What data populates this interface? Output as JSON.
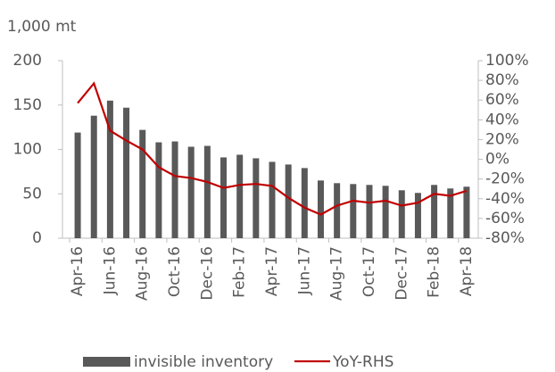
{
  "chart_data": {
    "type": "bar_line",
    "y_label": "1,000 mt",
    "categories": [
      "Apr-16",
      null,
      "Jun-16",
      null,
      "Aug-16",
      null,
      "Oct-16",
      null,
      "Dec-16",
      null,
      "Feb-17",
      null,
      "Apr-17",
      null,
      "Jun-17",
      null,
      "Aug-17",
      null,
      "Oct-17",
      null,
      "Dec-17",
      null,
      "Feb-18",
      null,
      "Apr-18"
    ],
    "series": [
      {
        "name": "invisible inventory",
        "type": "bar",
        "color": "#595959",
        "values": [
          119,
          138,
          155,
          147,
          122,
          108,
          109,
          103,
          104,
          91,
          94,
          90,
          86,
          83,
          79,
          65,
          62,
          61,
          60,
          59,
          54,
          51,
          60,
          56,
          58
        ]
      },
      {
        "name": "YoY-RHS",
        "type": "line",
        "axis": "y2",
        "color": "#c00000",
        "values": [
          57,
          77,
          29,
          19,
          10,
          -8,
          -17,
          -19,
          -23,
          -29,
          -26,
          -25,
          -27,
          -39,
          -49,
          -56,
          -47,
          -42,
          -44,
          -42,
          -47,
          -44,
          -35,
          -37,
          -32
        ]
      }
    ],
    "ylim": [
      0,
      200
    ],
    "yticks": [
      0,
      50,
      100,
      150,
      200
    ],
    "y2lim": [
      -80,
      100
    ],
    "y2ticks": [
      {
        "value": -80,
        "label": "-80%"
      },
      {
        "value": -60,
        "label": "-60%"
      },
      {
        "value": -40,
        "label": "-40%"
      },
      {
        "value": -20,
        "label": "-20%"
      },
      {
        "value": 0,
        "label": "0%"
      },
      {
        "value": 20,
        "label": "20%"
      },
      {
        "value": 40,
        "label": "40%"
      },
      {
        "value": 60,
        "label": "60%"
      },
      {
        "value": 80,
        "label": "80%"
      },
      {
        "value": 100,
        "label": "100%"
      }
    ]
  }
}
